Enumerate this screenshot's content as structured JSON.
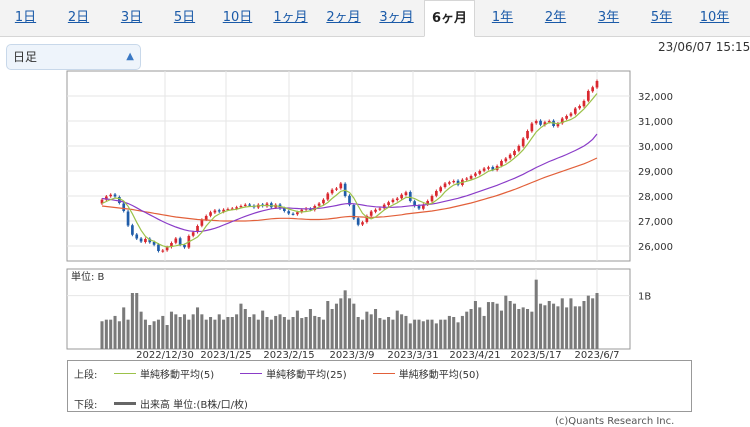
{
  "tabs": [
    {
      "label": "1日",
      "active": false
    },
    {
      "label": "2日",
      "active": false
    },
    {
      "label": "3日",
      "active": false
    },
    {
      "label": "5日",
      "active": false
    },
    {
      "label": "10日",
      "active": false
    },
    {
      "label": "1ヶ月",
      "active": false
    },
    {
      "label": "2ヶ月",
      "active": false
    },
    {
      "label": "3ヶ月",
      "active": false
    },
    {
      "label": "6ヶ月",
      "active": true
    },
    {
      "label": "1年",
      "active": false
    },
    {
      "label": "2年",
      "active": false
    },
    {
      "label": "3年",
      "active": false
    },
    {
      "label": "5年",
      "active": false
    },
    {
      "label": "10年",
      "active": false
    }
  ],
  "period_select": {
    "value": "日足"
  },
  "timestamp": "23/06/07 15:15",
  "legend": {
    "upper_label": "上段:",
    "lower_label": "下段:",
    "ma5_label": "単純移動平均(5)",
    "ma25_label": "単純移動平均(25)",
    "ma50_label": "単純移動平均(50)",
    "volume_label": "出来高 単位:(B株/口/枚)"
  },
  "credit": "(c)Quants Research Inc.",
  "colors": {
    "up": "#d9282f",
    "down": "#1f5ca8",
    "ma5": "#9cc24a",
    "ma25": "#8a3cc8",
    "ma50": "#e2603a",
    "volume": "#7a7a7a"
  },
  "chart_data": {
    "type": "candlestick",
    "price_axis": {
      "ticks": [
        "32,000",
        "31,000",
        "30,000",
        "29,000",
        "28,000",
        "27,000",
        "26,000"
      ],
      "ylim": [
        25400,
        33000
      ]
    },
    "volume_axis": {
      "label": "単位: B",
      "ticks": [
        "1B"
      ],
      "ylim": [
        0,
        1.5
      ]
    },
    "date_ticks": [
      "2022/12/30",
      "2023/1/25",
      "2023/2/15",
      "2023/3/9",
      "2023/3/31",
      "2023/4/21",
      "2023/5/17",
      "2023/6/7"
    ],
    "close": [
      27850,
      27980,
      28050,
      27980,
      27720,
      27400,
      26820,
      26450,
      26300,
      26180,
      26280,
      26150,
      26050,
      25800,
      25820,
      25950,
      26120,
      26300,
      26050,
      25950,
      26400,
      26550,
      26800,
      27050,
      27200,
      27350,
      27420,
      27380,
      27450,
      27480,
      27500,
      27550,
      27600,
      27650,
      27620,
      27550,
      27650,
      27600,
      27700,
      27550,
      27650,
      27500,
      27400,
      27300,
      27280,
      27350,
      27450,
      27500,
      27450,
      27600,
      27700,
      27850,
      28100,
      28250,
      28300,
      28500,
      28000,
      27650,
      27100,
      26850,
      26950,
      27200,
      27380,
      27450,
      27500,
      27650,
      27750,
      27850,
      27900,
      28050,
      28150,
      27800,
      27600,
      27500,
      27650,
      27800,
      28000,
      28200,
      28350,
      28500,
      28550,
      28600,
      28450,
      28650,
      28700,
      28800,
      28900,
      29000,
      29100,
      29150,
      29050,
      29200,
      29400,
      29500,
      29650,
      29800,
      30000,
      30300,
      30600,
      30900,
      31000,
      30850,
      30950,
      31000,
      30800,
      30900,
      31100,
      31200,
      31300,
      31500,
      31600,
      31800,
      32200,
      32350,
      32600
    ],
    "open": [
      27700,
      27850,
      27990,
      28060,
      27960,
      27700,
      27380,
      26830,
      26460,
      26300,
      26160,
      26290,
      26160,
      26060,
      25790,
      25830,
      25960,
      26130,
      26310,
      26040,
      25940,
      26410,
      26560,
      26810,
      27060,
      27210,
      27340,
      27430,
      27370,
      27460,
      27490,
      27490,
      27560,
      27610,
      27660,
      27610,
      27540,
      27660,
      27590,
      27710,
      27540,
      27660,
      27510,
      27390,
      27290,
      27270,
      27360,
      27460,
      27490,
      27440,
      27610,
      27710,
      27860,
      28110,
      28260,
      28310,
      28490,
      28010,
      27640,
      27110,
      26860,
      26960,
      27210,
      27370,
      27460,
      27510,
      27640,
      27760,
      27840,
      27910,
      28040,
      28160,
      27790,
      27610,
      27490,
      27660,
      27790,
      28010,
      28190,
      28360,
      28490,
      28560,
      28610,
      28440,
      28660,
      28690,
      28810,
      28890,
      29010,
      29090,
      29160,
      29040,
      29210,
      29390,
      29510,
      29640,
      29810,
      29990,
      30310,
      30590,
      30910,
      31010,
      30840,
      30960,
      31010,
      30790,
      30910,
      31090,
      31210,
      31290,
      31510,
      31590,
      31810,
      32190,
      32340
    ],
    "ma5": [
      27700,
      27780,
      27860,
      27920,
      27900,
      27800,
      27590,
      27290,
      26950,
      26630,
      26390,
      26250,
      26190,
      26090,
      26010,
      25960,
      25980,
      26010,
      26050,
      26070,
      26170,
      26260,
      26360,
      26550,
      26800,
      27000,
      27180,
      27280,
      27360,
      27420,
      27450,
      27470,
      27520,
      27560,
      27580,
      27590,
      27610,
      27620,
      27620,
      27610,
      27610,
      27580,
      27540,
      27480,
      27430,
      27380,
      27360,
      27380,
      27410,
      27480,
      27560,
      27630,
      27740,
      27900,
      28040,
      28190,
      28230,
      28140,
      27920,
      27600,
      27310,
      27150,
      27090,
      27160,
      27300,
      27440,
      27550,
      27640,
      27730,
      27840,
      27940,
      27950,
      27900,
      27810,
      27740,
      27670,
      27710,
      27830,
      27970,
      28170,
      28320,
      28440,
      28500,
      28550,
      28590,
      28640,
      28700,
      28780,
      28880,
      28990,
      29040,
      29100,
      29180,
      29260,
      29380,
      29520,
      29670,
      29850,
      30070,
      30320,
      30560,
      30730,
      30850,
      30940,
      30920,
      30890,
      30950,
      31000,
      31060,
      31160,
      31320,
      31480,
      31680,
      31890,
      32100
    ],
    "ma25": [
      27900,
      27880,
      27860,
      27830,
      27800,
      27760,
      27700,
      27620,
      27530,
      27430,
      27340,
      27250,
      27160,
      27070,
      26980,
      26900,
      26830,
      26760,
      26700,
      26650,
      26610,
      26590,
      26580,
      26590,
      26620,
      26660,
      26710,
      26770,
      26840,
      26910,
      26980,
      27050,
      27120,
      27190,
      27250,
      27310,
      27360,
      27410,
      27450,
      27490,
      27510,
      27520,
      27520,
      27520,
      27510,
      27500,
      27490,
      27490,
      27490,
      27500,
      27510,
      27530,
      27560,
      27590,
      27620,
      27660,
      27690,
      27700,
      27690,
      27670,
      27640,
      27610,
      27590,
      27570,
      27560,
      27550,
      27550,
      27550,
      27560,
      27570,
      27590,
      27610,
      27620,
      27630,
      27640,
      27660,
      27680,
      27710,
      27750,
      27790,
      27830,
      27870,
      27910,
      27960,
      28010,
      28070,
      28130,
      28190,
      28250,
      28310,
      28370,
      28430,
      28500,
      28570,
      28640,
      28710,
      28790,
      28870,
      28960,
      29050,
      29140,
      29220,
      29300,
      29380,
      29450,
      29520,
      29590,
      29660,
      29740,
      29820,
      29910,
      30000,
      30120,
      30270,
      30480
    ],
    "ma50": [
      27600,
      27580,
      27560,
      27540,
      27520,
      27500,
      27480,
      27460,
      27430,
      27400,
      27370,
      27340,
      27310,
      27280,
      27250,
      27220,
      27190,
      27160,
      27140,
      27120,
      27100,
      27080,
      27060,
      27050,
      27040,
      27030,
      27020,
      27010,
      27000,
      27000,
      27000,
      27000,
      27000,
      27000,
      27010,
      27020,
      27030,
      27050,
      27070,
      27090,
      27100,
      27110,
      27110,
      27110,
      27100,
      27090,
      27080,
      27070,
      27060,
      27060,
      27060,
      27070,
      27080,
      27100,
      27120,
      27150,
      27170,
      27180,
      27180,
      27170,
      27160,
      27150,
      27150,
      27150,
      27160,
      27170,
      27190,
      27210,
      27230,
      27250,
      27280,
      27300,
      27320,
      27340,
      27360,
      27380,
      27400,
      27430,
      27460,
      27490,
      27520,
      27560,
      27600,
      27640,
      27680,
      27720,
      27770,
      27820,
      27870,
      27920,
      27970,
      28020,
      28080,
      28140,
      28200,
      28260,
      28330,
      28400,
      28470,
      28540,
      28610,
      28680,
      28750,
      28810,
      28870,
      28930,
      28990,
      29050,
      29110,
      29170,
      29230,
      29290,
      29360,
      29440,
      29520
    ],
    "volume": [
      0.52,
      0.55,
      0.55,
      0.62,
      0.52,
      0.78,
      0.55,
      1.05,
      1.05,
      0.7,
      0.55,
      0.45,
      0.52,
      0.55,
      0.62,
      0.45,
      0.7,
      0.65,
      0.6,
      0.65,
      0.55,
      0.65,
      0.78,
      0.65,
      0.55,
      0.6,
      0.55,
      0.65,
      0.55,
      0.6,
      0.6,
      0.65,
      0.85,
      0.75,
      0.6,
      0.65,
      0.55,
      0.72,
      0.6,
      0.55,
      0.62,
      0.65,
      0.6,
      0.55,
      0.6,
      0.72,
      0.58,
      0.6,
      0.75,
      0.62,
      0.6,
      0.55,
      0.9,
      0.75,
      0.85,
      0.95,
      1.1,
      0.95,
      0.85,
      0.6,
      0.55,
      0.7,
      0.65,
      0.75,
      0.58,
      0.55,
      0.6,
      0.55,
      0.72,
      0.65,
      0.62,
      0.48,
      0.55,
      0.55,
      0.52,
      0.55,
      0.55,
      0.48,
      0.55,
      0.55,
      0.62,
      0.6,
      0.5,
      0.62,
      0.7,
      0.75,
      0.9,
      0.78,
      0.62,
      0.88,
      0.88,
      0.85,
      0.72,
      1.0,
      0.9,
      0.85,
      0.75,
      0.78,
      0.75,
      0.7,
      1.3,
      0.85,
      0.82,
      0.9,
      0.85,
      0.8,
      0.95,
      0.78,
      0.95,
      0.8,
      0.8,
      0.9,
      1.0,
      0.95,
      1.05
    ]
  }
}
